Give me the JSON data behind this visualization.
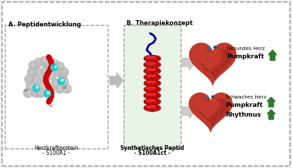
{
  "bg_color": "#f0f0f0",
  "white": "#ffffff",
  "border_color": "#999999",
  "green_arrow": "#2d7a2d",
  "section_a_label": "A. Peptidentwicklung",
  "section_b_label": "B. Therapiekonzept",
  "protein_label1": "Herzkraftprotein",
  "protein_label2": "- S100A1 -",
  "peptid_label1": "Synthetisches Peptid",
  "peptid_label2": "- S100A1ct -",
  "gesundes_herz": "Gesundes Herz",
  "schwaches_herz": "Schwaches Herz",
  "pumpkraft": "Pumpkraft",
  "rhythmus": "Rhythmus",
  "helix_color": "#cc0000",
  "helix_shade": "#880000",
  "helix_tail_color": "#000099",
  "protein_gray": "#b8b8b8",
  "protein_gray2": "#d0d0d0",
  "protein_red": "#cc0000",
  "cyan_dots": "#22cccc",
  "heart_red": "#c0392b",
  "heart_dark": "#8b1a1a",
  "heart_mid": "#a93226",
  "heart_blue": "#2471a3",
  "heart_blue2": "#1a5276",
  "green_bg": "#e8f4e8",
  "label_color": "#333333"
}
